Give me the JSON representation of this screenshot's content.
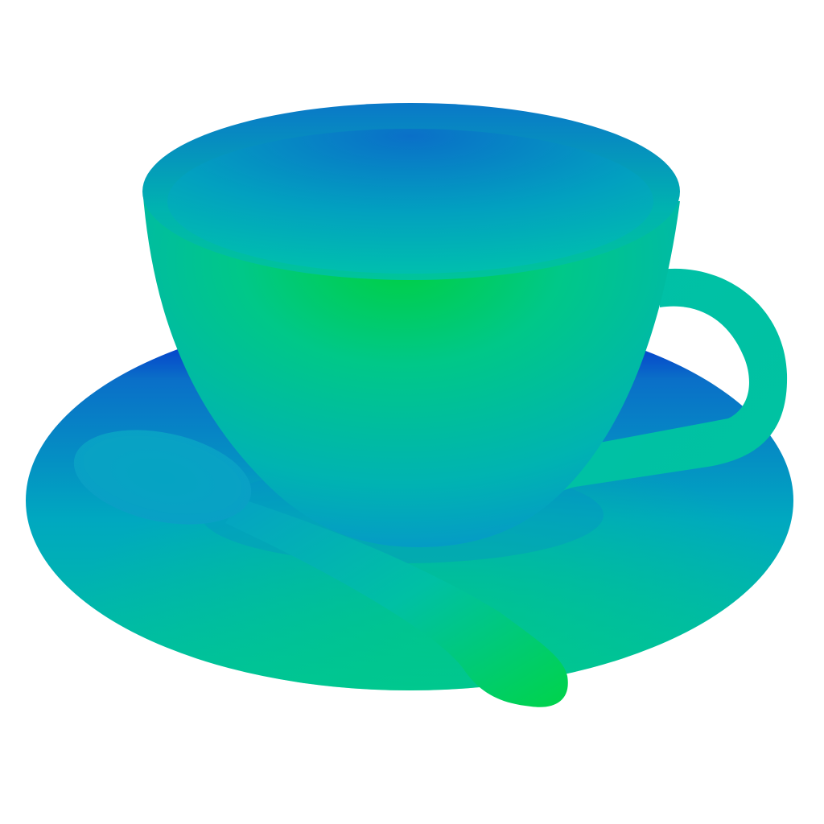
{
  "scene": {
    "subject": "teacup-with-saucer-and-spoon",
    "render_style": "normal-map-shading",
    "colors": {
      "background": "#ffffff",
      "deep_blue": "#0010d0",
      "blue": "#0a6fc8",
      "cyan": "#00a8c0",
      "teal": "#00bfa6",
      "green": "#00d046"
    },
    "objects": [
      {
        "id": "saucer",
        "icon": "saucer-icon"
      },
      {
        "id": "cup",
        "icon": "cup-icon"
      },
      {
        "id": "cup-handle",
        "icon": "handle-icon"
      },
      {
        "id": "spoon",
        "icon": "spoon-icon"
      }
    ]
  }
}
